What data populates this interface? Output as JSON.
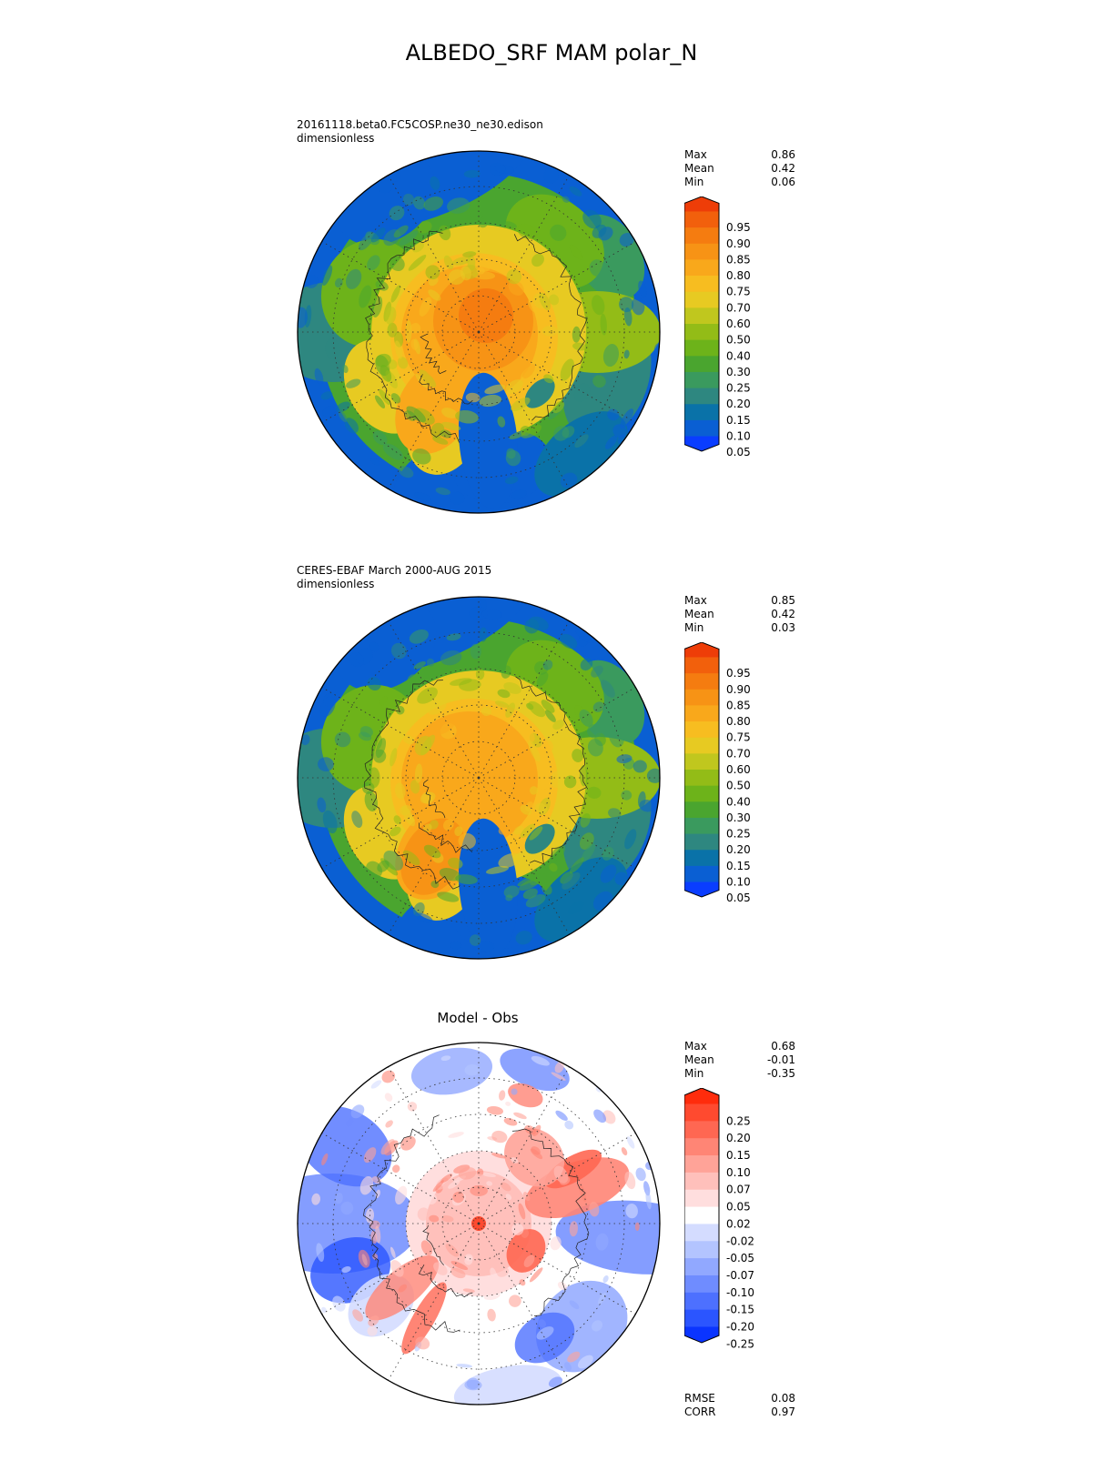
{
  "figure": {
    "title": "ALBEDO_SRF MAM polar_N"
  },
  "panels": [
    {
      "id": "model",
      "title_line1": "20161118.beta0.FC5COSP.ne30_ne30.edison",
      "title_line2": "dimensionless",
      "stats": [
        {
          "label": "Max",
          "value": "0.86"
        },
        {
          "label": "Mean",
          "value": "0.42"
        },
        {
          "label": "Min",
          "value": "0.06"
        }
      ]
    },
    {
      "id": "obs",
      "title_line1": "CERES-EBAF March 2000-AUG 2015",
      "title_line2": "dimensionless",
      "stats": [
        {
          "label": "Max",
          "value": "0.85"
        },
        {
          "label": "Mean",
          "value": "0.42"
        },
        {
          "label": "Min",
          "value": "0.03"
        }
      ]
    },
    {
      "id": "diff",
      "title": "Model - Obs",
      "stats": [
        {
          "label": "Max",
          "value": "0.68"
        },
        {
          "label": "Mean",
          "value": "-0.01"
        },
        {
          "label": "Min",
          "value": "-0.35"
        }
      ],
      "metrics": [
        {
          "label": "RMSE",
          "value": "0.08"
        },
        {
          "label": "CORR",
          "value": "0.97"
        }
      ]
    }
  ],
  "colorbars": {
    "abs": {
      "ticks": [
        "0.05",
        "0.10",
        "0.15",
        "0.20",
        "0.25",
        "0.30",
        "0.40",
        "0.50",
        "0.60",
        "0.70",
        "0.75",
        "0.80",
        "0.85",
        "0.90",
        "0.95"
      ],
      "colors": [
        "#0a3dff",
        "#0a5fd3",
        "#0a72a8",
        "#2e8780",
        "#3a9a5e",
        "#4aa52f",
        "#6db31a",
        "#93bc17",
        "#c0c71e",
        "#e7ca22",
        "#f7bd20",
        "#f9a81b",
        "#f79315",
        "#f57c10",
        "#f2600c",
        "#ee3d08"
      ]
    },
    "diff": {
      "ticks": [
        "-0.25",
        "-0.20",
        "-0.15",
        "-0.10",
        "-0.07",
        "-0.05",
        "-0.02",
        "0.02",
        "0.05",
        "0.07",
        "0.10",
        "0.15",
        "0.20",
        "0.25"
      ],
      "colors": [
        "#0a34ff",
        "#2b55ff",
        "#4d70ff",
        "#6f8cff",
        "#91a8ff",
        "#b3c4ff",
        "#d4dcff",
        "#ffffff",
        "#ffdede",
        "#ffc0bb",
        "#ffa398",
        "#ff8575",
        "#ff6752",
        "#ff4a2f",
        "#ff2c0c"
      ]
    }
  },
  "chart_data": [
    {
      "type": "heatmap",
      "title": "20161118.beta0.FC5COSP.ne30_ne30.edison",
      "units": "dimensionless",
      "projection": "north polar stereographic",
      "stats": {
        "max": 0.86,
        "mean": 0.42,
        "min": 0.06
      },
      "levels": [
        0.05,
        0.1,
        0.15,
        0.2,
        0.25,
        0.3,
        0.4,
        0.5,
        0.6,
        0.7,
        0.75,
        0.8,
        0.85,
        0.9,
        0.95
      ]
    },
    {
      "type": "heatmap",
      "title": "CERES-EBAF March 2000-AUG 2015",
      "units": "dimensionless",
      "projection": "north polar stereographic",
      "stats": {
        "max": 0.85,
        "mean": 0.42,
        "min": 0.03
      },
      "levels": [
        0.05,
        0.1,
        0.15,
        0.2,
        0.25,
        0.3,
        0.4,
        0.5,
        0.6,
        0.7,
        0.75,
        0.8,
        0.85,
        0.9,
        0.95
      ]
    },
    {
      "type": "heatmap",
      "title": "Model - Obs",
      "projection": "north polar stereographic",
      "stats": {
        "max": 0.68,
        "mean": -0.01,
        "min": -0.35,
        "rmse": 0.08,
        "corr": 0.97
      },
      "levels": [
        -0.25,
        -0.2,
        -0.15,
        -0.1,
        -0.07,
        -0.05,
        -0.02,
        0.02,
        0.05,
        0.07,
        0.1,
        0.15,
        0.2,
        0.25
      ]
    }
  ]
}
